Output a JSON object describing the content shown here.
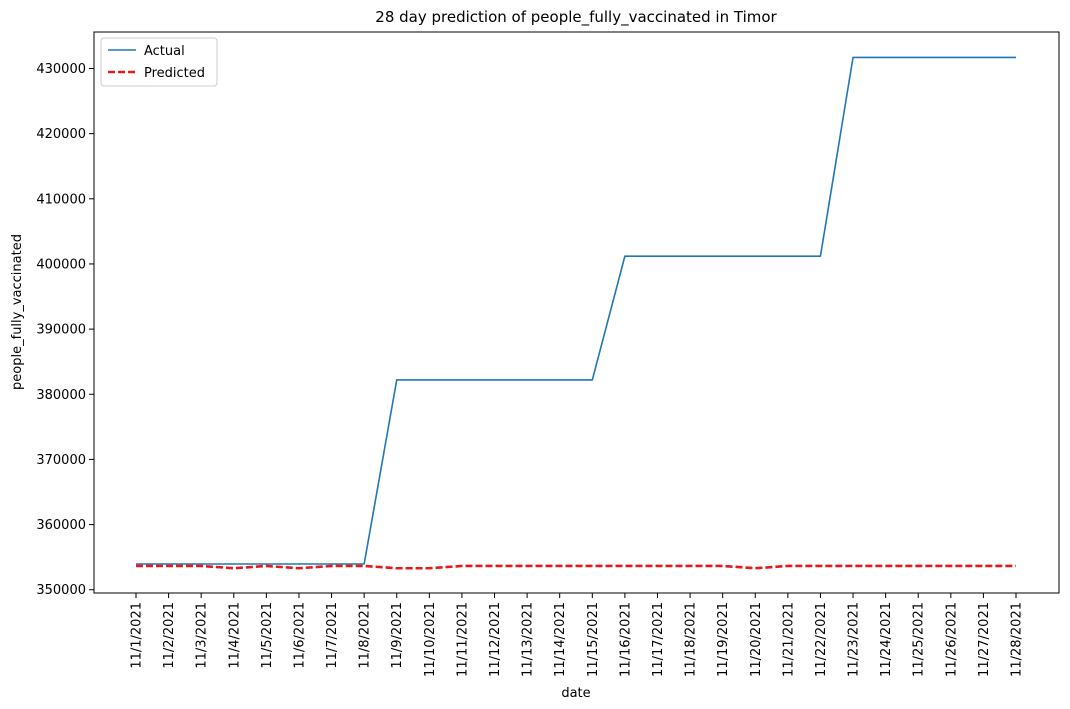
{
  "chart_data": {
    "type": "line",
    "title": "28 day prediction of people_fully_vaccinated in Timor",
    "xlabel": "date",
    "ylabel": "people_fully_vaccinated",
    "categories": [
      "11/1/2021",
      "11/2/2021",
      "11/3/2021",
      "11/4/2021",
      "11/5/2021",
      "11/6/2021",
      "11/7/2021",
      "11/8/2021",
      "11/9/2021",
      "11/10/2021",
      "11/11/2021",
      "11/12/2021",
      "11/13/2021",
      "11/14/2021",
      "11/15/2021",
      "11/16/2021",
      "11/17/2021",
      "11/18/2021",
      "11/19/2021",
      "11/20/2021",
      "11/21/2021",
      "11/22/2021",
      "11/23/2021",
      "11/24/2021",
      "11/25/2021",
      "11/26/2021",
      "11/27/2021",
      "11/28/2021"
    ],
    "ylim": [
      349500,
      435600
    ],
    "yticks": [
      350000,
      360000,
      370000,
      380000,
      390000,
      400000,
      410000,
      420000,
      430000
    ],
    "legend_position": "top-left",
    "grid": false,
    "series": [
      {
        "name": "Actual",
        "color": "#1f77b4",
        "style": "solid",
        "values": [
          353950,
          353950,
          353950,
          353950,
          353950,
          353950,
          353950,
          353950,
          382200,
          382200,
          382200,
          382200,
          382200,
          382200,
          382200,
          401200,
          401200,
          401200,
          401200,
          401200,
          401200,
          401200,
          431700,
          431700,
          431700,
          431700,
          431700,
          431700
        ]
      },
      {
        "name": "Predicted",
        "color": "#e41a1c",
        "style": "dashed",
        "values": [
          353650,
          353650,
          353650,
          353300,
          353650,
          353300,
          353650,
          353650,
          353300,
          353300,
          353650,
          353650,
          353650,
          353650,
          353650,
          353650,
          353650,
          353650,
          353650,
          353300,
          353650,
          353650,
          353650,
          353650,
          353650,
          353650,
          353650,
          353650
        ]
      }
    ]
  }
}
